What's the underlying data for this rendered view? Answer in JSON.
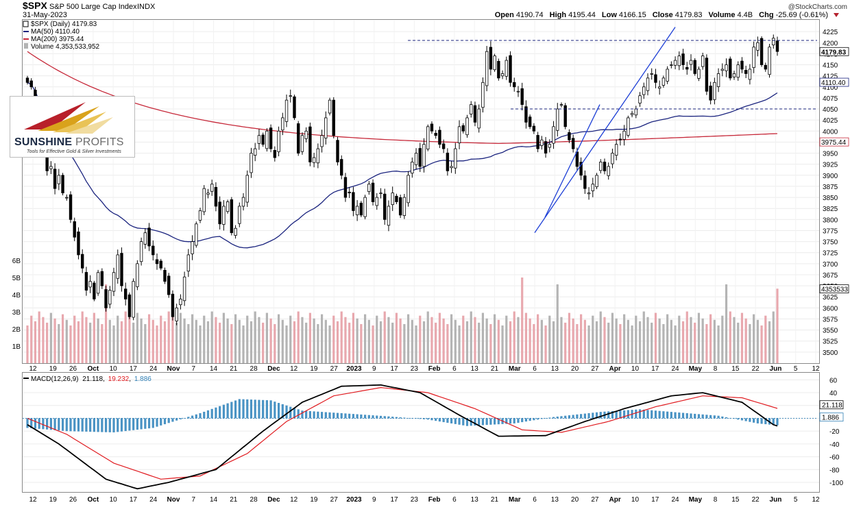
{
  "header": {
    "symbol": "$SPX",
    "name": "S&P 500 Large Cap Index",
    "exchange": "INDX",
    "date": "31-May-2023",
    "watermark": "@StockCharts.com",
    "ohlc": {
      "open_label": "Open",
      "open": "4190.74",
      "high_label": "High",
      "high": "4195.44",
      "low_label": "Low",
      "low": "4166.15",
      "close_label": "Close",
      "close": "4179.83",
      "volume_label": "Volume",
      "volume": "4.4B",
      "chg_label": "Chg",
      "chg": "-25.69 (-0.61%)"
    }
  },
  "legend": {
    "price": "$SPX (Daily) 4179.83",
    "ma50": "MA(50) 4110.40",
    "ma200": "MA(200) 3975.44",
    "volume": "Volume 4,353,533,952",
    "macd_name": "MACD(12,26,9)",
    "macd": "21.118",
    "signal": "19.232",
    "hist": "1.886"
  },
  "logo": {
    "name_a": "SUNSHINE",
    "name_b": "PROFITS",
    "tagline": "Tools for Effective Gold & Silver Investments"
  },
  "colors": {
    "up": "#ffffff",
    "down": "#000000",
    "ma50": "#1a237e",
    "ma200": "#c62839",
    "vol_up": "#b4b4b4",
    "vol_down": "#e8a8ae",
    "macd_line": "#000000",
    "signal_line": "#e0191e",
    "hist": "#4a93c4",
    "trend": "#1d3fd6",
    "resistance": "#1a237e"
  },
  "chart_data": [
    {
      "type": "candlestick",
      "title": "$SPX S&P 500 Large Cap Index",
      "ylim": [
        3475,
        4250
      ],
      "y_ticks": [
        3500,
        3525,
        3550,
        3575,
        3600,
        3625,
        3650,
        3675,
        3700,
        3725,
        3750,
        3775,
        3800,
        3825,
        3850,
        3875,
        3900,
        3925,
        3950,
        3975,
        4000,
        4025,
        4050,
        4075,
        4100,
        4125,
        4150,
        4175,
        4200,
        4225
      ],
      "volume_ticks": [
        "1B",
        "2B",
        "3B",
        "4B",
        "5B",
        "6B"
      ],
      "price_tags": [
        "4179.83",
        "4110.40",
        "3975.44",
        "4353533"
      ],
      "x_labels": [
        "12",
        "19",
        "26",
        "Oct",
        "10",
        "17",
        "24",
        "Nov",
        "7",
        "14",
        "21",
        "28",
        "Dec",
        "12",
        "19",
        "27",
        "2023",
        "9",
        "17",
        "23",
        "Feb",
        "6",
        "13",
        "21",
        "Mar",
        "6",
        "13",
        "20",
        "27",
        "Apr",
        "10",
        "17",
        "24",
        "May",
        "8",
        "15",
        "22",
        "Jun",
        "5",
        "12"
      ],
      "close": [
        4110,
        4100,
        4060,
        4000,
        3990,
        3910,
        3920,
        3870,
        3900,
        3860,
        3850,
        3800,
        3760,
        3720,
        3690,
        3640,
        3660,
        3620,
        3680,
        3650,
        3600,
        3640,
        3680,
        3720,
        3650,
        3620,
        3580,
        3660,
        3700,
        3750,
        3770,
        3740,
        3720,
        3700,
        3690,
        3660,
        3630,
        3580,
        3600,
        3620,
        3670,
        3720,
        3750,
        3790,
        3820,
        3870,
        3860,
        3880,
        3830,
        3790,
        3830,
        3840,
        3770,
        3780,
        3830,
        3850,
        3900,
        3950,
        3960,
        3990,
        3970,
        4000,
        3960,
        3940,
        4000,
        4030,
        4070,
        4080,
        4030,
        3950,
        3990,
        4000,
        3930,
        3940,
        3960,
        3990,
        4030,
        4070,
        3990,
        3930,
        3900,
        3850,
        3860,
        3820,
        3830,
        3810,
        3850,
        3880,
        3840,
        3850,
        3860,
        3800,
        3830,
        3860,
        3840,
        3810,
        3850,
        3900,
        3930,
        3950,
        3920,
        3970,
        4010,
        4000,
        3990,
        3970,
        3960,
        3910,
        3920,
        3960,
        4010,
        4000,
        4030,
        4060,
        4020,
        4050,
        4110,
        4180,
        4140,
        4170,
        4120,
        4130,
        4160,
        4110,
        4100,
        4090,
        4060,
        4020,
        4010,
        4000,
        3960,
        3980,
        3950,
        3970,
        4010,
        4050,
        4060,
        4010,
        3980,
        3960,
        3920,
        3900,
        3870,
        3860,
        3880,
        3900,
        3930,
        3910,
        3920,
        3950,
        3970,
        3980,
        4000,
        4030,
        4040,
        4050,
        4080,
        4100,
        4120,
        4130,
        4110,
        4100,
        4120,
        4140,
        4150,
        4160,
        4170,
        4150,
        4140,
        4160,
        4130,
        4140,
        4170,
        4090,
        4070,
        4110,
        4130,
        4140,
        4150,
        4120,
        4130,
        4150,
        4140,
        4130,
        4140,
        4190,
        4200,
        4150,
        4140,
        4190,
        4210,
        4180
      ]
    },
    {
      "type": "line",
      "title": "MACD(12,26,9)",
      "ylim": [
        -115,
        70
      ],
      "y_ticks": [
        60,
        40,
        20,
        0,
        -20,
        -40,
        -60,
        -80,
        -100
      ],
      "series": [
        {
          "name": "MACD",
          "keys": [
            [
              0,
              -10
            ],
            [
              8,
              -40
            ],
            [
              20,
              -95
            ],
            [
              28,
              -110
            ],
            [
              36,
              -100
            ],
            [
              48,
              -80
            ],
            [
              60,
              -20
            ],
            [
              70,
              25
            ],
            [
              80,
              50
            ],
            [
              90,
              52
            ],
            [
              100,
              40
            ],
            [
              110,
              5
            ],
            [
              120,
              -28
            ],
            [
              132,
              -27
            ],
            [
              142,
              -5
            ],
            [
              152,
              15
            ],
            [
              164,
              35
            ],
            [
              172,
              40
            ],
            [
              182,
              25
            ],
            [
              190,
              -10
            ],
            [
              200,
              -30
            ],
            [
              210,
              -26
            ],
            [
              222,
              -5
            ],
            [
              232,
              15
            ],
            [
              240,
              35
            ],
            [
              250,
              42
            ],
            [
              260,
              30
            ],
            [
              270,
              15
            ],
            [
              282,
              5
            ],
            [
              290,
              10
            ],
            [
              296,
              18
            ]
          ]
        },
        {
          "name": "Signal",
          "keys": [
            [
              0,
              0
            ],
            [
              10,
              -25
            ],
            [
              22,
              -70
            ],
            [
              34,
              -95
            ],
            [
              44,
              -90
            ],
            [
              56,
              -55
            ],
            [
              66,
              -5
            ],
            [
              78,
              35
            ],
            [
              90,
              48
            ],
            [
              102,
              40
            ],
            [
              114,
              15
            ],
            [
              126,
              -18
            ],
            [
              136,
              -22
            ],
            [
              148,
              -5
            ],
            [
              160,
              18
            ],
            [
              172,
              35
            ],
            [
              182,
              32
            ],
            [
              194,
              10
            ],
            [
              206,
              -28
            ],
            [
              218,
              -22
            ],
            [
              230,
              -5
            ],
            [
              244,
              28
            ],
            [
              256,
              38
            ],
            [
              270,
              25
            ],
            [
              284,
              10
            ],
            [
              296,
              18
            ]
          ]
        },
        {
          "name": "Histogram",
          "keys": [
            [
              0,
              -15
            ],
            [
              10,
              -20
            ],
            [
              22,
              -22
            ],
            [
              32,
              -15
            ],
            [
              44,
              8
            ],
            [
              54,
              30
            ],
            [
              62,
              28
            ],
            [
              70,
              12
            ],
            [
              80,
              8
            ],
            [
              92,
              3
            ],
            [
              102,
              -2
            ],
            [
              112,
              -12
            ],
            [
              124,
              -8
            ],
            [
              134,
              2
            ],
            [
              146,
              10
            ],
            [
              156,
              14
            ],
            [
              168,
              8
            ],
            [
              176,
              4
            ],
            [
              186,
              -8
            ],
            [
              196,
              -14
            ],
            [
              206,
              -6
            ],
            [
              216,
              8
            ],
            [
              228,
              20
            ],
            [
              240,
              14
            ],
            [
              252,
              4
            ],
            [
              262,
              -5
            ],
            [
              272,
              -2
            ],
            [
              284,
              -3
            ],
            [
              296,
              1
            ]
          ]
        }
      ]
    }
  ]
}
